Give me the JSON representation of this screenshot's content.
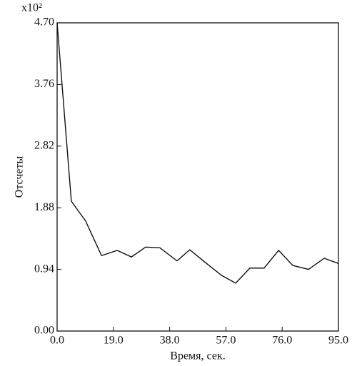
{
  "chart_data": {
    "type": "line",
    "y_multiplier": "x10²",
    "xlabel": "Время, сек.",
    "ylabel": "Отсчеты",
    "x": [
      0,
      4.8,
      9.6,
      15,
      20.3,
      25.1,
      29.9,
      34.7,
      40.5,
      44.8,
      50.2,
      55.5,
      60.3,
      65.1,
      69.9,
      74.8,
      79.6,
      84.9,
      90.2,
      95
    ],
    "series": [
      {
        "color": "#111111",
        "values": [
          4.7,
          1.98,
          1.68,
          1.15,
          1.23,
          1.13,
          1.28,
          1.27,
          1.07,
          1.24,
          1.04,
          0.85,
          0.73,
          0.96,
          0.96,
          1.23,
          1.0,
          0.94,
          1.11,
          1.03
        ]
      }
    ],
    "xlim": [
      0,
      95
    ],
    "ylim": [
      0,
      4.7
    ],
    "xticks": [
      {
        "value": 0,
        "label": "0.0"
      },
      {
        "value": 19,
        "label": "19.0"
      },
      {
        "value": 38,
        "label": "38.0"
      },
      {
        "value": 57,
        "label": "57.0"
      },
      {
        "value": 76,
        "label": "76.0"
      },
      {
        "value": 95,
        "label": "95.0"
      }
    ],
    "yticks": [
      {
        "value": 0,
        "label": "0.00"
      },
      0.94,
      1.88,
      2.82,
      3.76,
      {
        "value": 4.7,
        "label": "4.70"
      }
    ]
  }
}
